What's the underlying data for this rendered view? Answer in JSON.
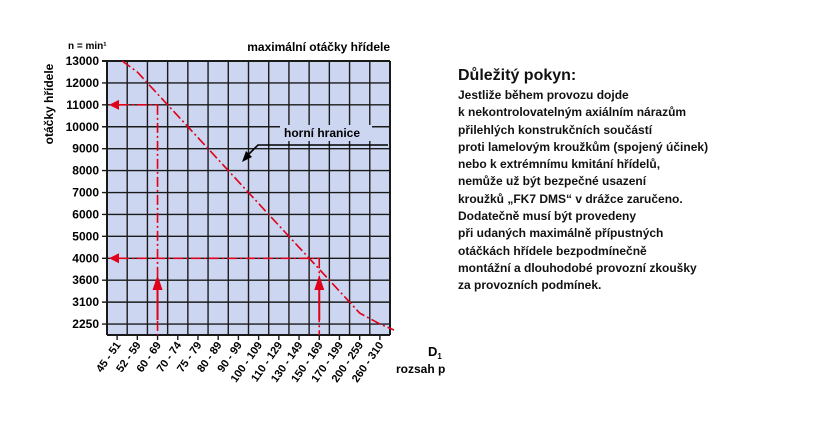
{
  "chart_data": {
    "type": "line",
    "title": "maximální otáčky hřídele",
    "unit_label": "n = min¹",
    "ylabel": "otáčky hřídele",
    "xlabel_symbol": "D",
    "xlabel_subscript": "1",
    "xlabel": "rozsah průměru",
    "categories": [
      "45 - 51",
      "52 - 59",
      "60 - 69",
      "70 - 74",
      "75 - 79",
      "80 - 89",
      "90 - 99",
      "100 - 109",
      "110 - 129",
      "130 - 149",
      "150 - 169",
      "170 - 199",
      "200 - 259",
      "260 - 310"
    ],
    "y_ticks": [
      "13000",
      "12000",
      "11000",
      "10000",
      "9000",
      "8000",
      "7000",
      "6000",
      "5000",
      "4000",
      "3600",
      "3100",
      "2250"
    ],
    "series": [
      {
        "values": [
          13000,
          12500,
          11500,
          10500,
          9500,
          8500,
          7500,
          6500,
          5500,
          4500,
          3800,
          3350,
          2675,
          2250
        ]
      }
    ],
    "annotation": "horní hranice",
    "example_readings": [
      {
        "x": "60 - 69",
        "y": 11000
      },
      {
        "x": "150 - 169",
        "y": 4000
      }
    ],
    "grid": true,
    "colors": {
      "line": "#e0001a",
      "grid": "#1a1a1a",
      "plot_bg": "#ccd6f0"
    }
  },
  "note": {
    "title": "Důležitý pokyn:",
    "lines": [
      "Jestliže během provozu dojde",
      "k nekontrolovatelným axiálním nárazům",
      "přilehlých konstrukčních součástí",
      "proti lamelovým kroužkům (spojený účinek)",
      "nebo k extrémnímu kmitání hřídelů,",
      "nemůže už být bezpečné usazení",
      "kroužků „FK7 DMS“ v drážce zaručeno.",
      "Dodatečně musí být provedeny",
      "při udaných maximálně přípustných",
      "otáčkách hřídele bezpodmínečně",
      "montážní a dlouhodobé provozní zkoušky",
      "za provozních podmínek."
    ]
  }
}
